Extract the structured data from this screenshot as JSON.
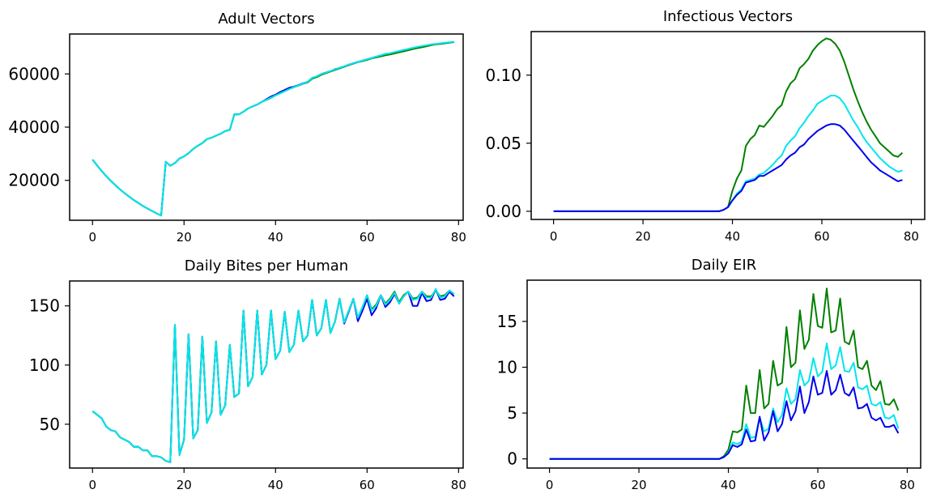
{
  "chart_data": [
    {
      "type": "line",
      "title": "Adult Vectors",
      "xlim": [
        -5,
        81
      ],
      "ylim": [
        5000,
        75000
      ],
      "xticks": [
        0,
        20,
        40,
        60,
        80
      ],
      "yticks": [
        20000,
        40000,
        60000
      ],
      "ytick_labels": [
        "20000",
        "40000",
        "60000"
      ],
      "xtick_labels": [
        "0",
        "20",
        "40",
        "60",
        "80"
      ],
      "series": [
        {
          "color": "#0000ee",
          "x_start": 0,
          "values": [
            27800,
            25600,
            23500,
            21600,
            19800,
            18200,
            16600,
            15200,
            13900,
            12600,
            11500,
            10400,
            9400,
            8500,
            7600,
            6800,
            27000,
            25500,
            26500,
            28200,
            29000,
            30200,
            31800,
            33000,
            34000,
            35500,
            36000,
            36800,
            37500,
            38500,
            39000,
            44800,
            44800,
            45800,
            47000,
            47800,
            48500,
            49500,
            50500,
            51500,
            52200,
            53200,
            54000,
            54800,
            55200,
            55800,
            56500,
            57000,
            58500,
            59000,
            60000,
            60500,
            61000,
            61800,
            62200,
            62800,
            63500,
            64000,
            64500,
            65000,
            65500,
            66000,
            66500,
            67000,
            67500,
            67700,
            68000,
            68500,
            69000,
            69200,
            69700,
            70000,
            70300,
            70600,
            71000,
            71200,
            71400,
            71600,
            71800,
            72000
          ]
        },
        {
          "color": "#008000",
          "x_start": 0,
          "values": [
            27800,
            25600,
            23500,
            21600,
            19800,
            18200,
            16600,
            15200,
            13900,
            12600,
            11500,
            10400,
            9400,
            8500,
            7600,
            6800,
            27000,
            25500,
            26500,
            28200,
            29000,
            30200,
            31800,
            33000,
            34000,
            35500,
            36000,
            36800,
            37500,
            38500,
            39000,
            44800,
            44800,
            45800,
            47000,
            47800,
            48500,
            49500,
            50200,
            51000,
            52000,
            52800,
            53500,
            54300,
            55000,
            55600,
            56300,
            56800,
            58200,
            58800,
            59700,
            60300,
            60900,
            61500,
            62100,
            62700,
            63300,
            63900,
            64400,
            64800,
            65300,
            65800,
            66200,
            66600,
            67000,
            67300,
            67700,
            68100,
            68500,
            68900,
            69300,
            69700,
            70000,
            70400,
            70800,
            71100,
            71300,
            71500,
            71700,
            72000
          ]
        },
        {
          "color": "#00e5ee",
          "x_start": 0,
          "values": [
            27800,
            25600,
            23500,
            21600,
            19800,
            18200,
            16600,
            15200,
            13900,
            12600,
            11500,
            10400,
            9400,
            8500,
            7600,
            6800,
            27000,
            25500,
            26500,
            28200,
            29000,
            30200,
            31800,
            33000,
            34000,
            35500,
            36000,
            36800,
            37500,
            38500,
            39000,
            44800,
            44800,
            45800,
            47000,
            47800,
            48500,
            49500,
            50300,
            51100,
            51900,
            52700,
            53500,
            54300,
            55000,
            55700,
            56400,
            57000,
            58500,
            59100,
            60000,
            60500,
            61100,
            61700,
            62300,
            62900,
            63500,
            64000,
            64500,
            65000,
            65500,
            66000,
            66500,
            67000,
            67500,
            67800,
            68200,
            68600,
            69000,
            69400,
            69800,
            70200,
            70500,
            70800,
            71100,
            71300,
            71500,
            71700,
            71900,
            72100
          ]
        }
      ]
    },
    {
      "type": "line",
      "title": "Infectious Vectors",
      "xlim": [
        -5,
        83
      ],
      "ylim": [
        -0.006,
        0.132
      ],
      "xticks": [
        0,
        20,
        40,
        60,
        80
      ],
      "yticks": [
        0.0,
        0.05,
        0.1
      ],
      "ytick_labels": [
        "0.00",
        "0.05",
        "0.10"
      ],
      "xtick_labels": [
        "0",
        "20",
        "40",
        "60",
        "80"
      ],
      "series": [
        {
          "color": "#008000",
          "x_start": 0,
          "values": [
            0,
            0,
            0,
            0,
            0,
            0,
            0,
            0,
            0,
            0,
            0,
            0,
            0,
            0,
            0,
            0,
            0,
            0,
            0,
            0,
            0,
            0,
            0,
            0,
            0,
            0,
            0,
            0,
            0,
            0,
            0,
            0,
            0,
            0,
            0,
            0,
            0,
            0,
            0.001,
            0.003,
            0.015,
            0.024,
            0.03,
            0.048,
            0.053,
            0.056,
            0.063,
            0.062,
            0.066,
            0.07,
            0.075,
            0.078,
            0.088,
            0.094,
            0.097,
            0.105,
            0.108,
            0.112,
            0.118,
            0.122,
            0.125,
            0.127,
            0.126,
            0.123,
            0.118,
            0.11,
            0.1,
            0.09,
            0.081,
            0.073,
            0.066,
            0.06,
            0.055,
            0.05,
            0.047,
            0.044,
            0.041,
            0.04,
            0.043
          ]
        },
        {
          "color": "#00e5ee",
          "x_start": 0,
          "values": [
            0,
            0,
            0,
            0,
            0,
            0,
            0,
            0,
            0,
            0,
            0,
            0,
            0,
            0,
            0,
            0,
            0,
            0,
            0,
            0,
            0,
            0,
            0,
            0,
            0,
            0,
            0,
            0,
            0,
            0,
            0,
            0,
            0,
            0,
            0,
            0,
            0,
            0,
            0.001,
            0.003,
            0.008,
            0.013,
            0.016,
            0.022,
            0.023,
            0.024,
            0.027,
            0.028,
            0.031,
            0.034,
            0.038,
            0.041,
            0.048,
            0.052,
            0.055,
            0.061,
            0.065,
            0.07,
            0.074,
            0.079,
            0.081,
            0.083,
            0.085,
            0.085,
            0.083,
            0.079,
            0.073,
            0.067,
            0.062,
            0.056,
            0.051,
            0.047,
            0.043,
            0.039,
            0.036,
            0.033,
            0.031,
            0.029,
            0.03
          ]
        },
        {
          "color": "#0000ee",
          "x_start": 0,
          "values": [
            0,
            0,
            0,
            0,
            0,
            0,
            0,
            0,
            0,
            0,
            0,
            0,
            0,
            0,
            0,
            0,
            0,
            0,
            0,
            0,
            0,
            0,
            0,
            0,
            0,
            0,
            0,
            0,
            0,
            0,
            0,
            0,
            0,
            0,
            0,
            0,
            0,
            0,
            0.001,
            0.003,
            0.008,
            0.012,
            0.015,
            0.021,
            0.022,
            0.023,
            0.026,
            0.026,
            0.028,
            0.03,
            0.032,
            0.034,
            0.038,
            0.041,
            0.043,
            0.047,
            0.049,
            0.053,
            0.056,
            0.059,
            0.061,
            0.063,
            0.064,
            0.064,
            0.063,
            0.06,
            0.056,
            0.052,
            0.048,
            0.044,
            0.04,
            0.036,
            0.033,
            0.03,
            0.028,
            0.026,
            0.024,
            0.022,
            0.023
          ]
        }
      ]
    },
    {
      "type": "line",
      "title": "Daily Bites per Human",
      "xlim": [
        -5,
        81
      ],
      "ylim": [
        13,
        171
      ],
      "xticks": [
        0,
        20,
        40,
        60,
        80
      ],
      "yticks": [
        50,
        100,
        150
      ],
      "ytick_labels": [
        "50",
        "100",
        "150"
      ],
      "xtick_labels": [
        "0",
        "20",
        "40",
        "60",
        "80"
      ],
      "series": [
        {
          "color": "#0000ee",
          "x_start": 0,
          "values": [
            61,
            58,
            55,
            48,
            45,
            44,
            39,
            37,
            35,
            31,
            31,
            28,
            28,
            23,
            23,
            22,
            19,
            18,
            134,
            24,
            37,
            126,
            38,
            45,
            124,
            51,
            60,
            120,
            58,
            66,
            117,
            73,
            76,
            146,
            82,
            90,
            146,
            92,
            100,
            146,
            105,
            112,
            145,
            111,
            117,
            146,
            120,
            125,
            155,
            125,
            131,
            155,
            127,
            137,
            156,
            135,
            145,
            156,
            137,
            146,
            156,
            142,
            148,
            159,
            149,
            153,
            160,
            152,
            158,
            162,
            150,
            150,
            161,
            154,
            155,
            164,
            155,
            156,
            162,
            158
          ]
        },
        {
          "color": "#008000",
          "x_start": 0,
          "values": [
            61,
            58,
            55,
            48,
            45,
            44,
            39,
            37,
            35,
            31,
            31,
            28,
            28,
            23,
            23,
            22,
            19,
            18,
            134,
            24,
            37,
            126,
            38,
            45,
            124,
            51,
            60,
            120,
            58,
            66,
            117,
            73,
            76,
            146,
            82,
            90,
            146,
            92,
            100,
            146,
            105,
            112,
            145,
            111,
            117,
            146,
            120,
            125,
            155,
            125,
            131,
            155,
            127,
            137,
            156,
            136,
            146,
            156,
            140,
            149,
            159,
            147,
            151,
            159,
            152,
            156,
            162,
            153,
            159,
            162,
            156,
            157,
            162,
            158,
            158,
            163,
            158,
            159,
            163,
            160
          ]
        },
        {
          "color": "#00e5ee",
          "x_start": 0,
          "values": [
            61,
            58,
            55,
            48,
            45,
            44,
            39,
            37,
            35,
            31,
            31,
            28,
            28,
            23,
            23,
            22,
            19,
            18,
            134,
            24,
            37,
            126,
            38,
            45,
            124,
            51,
            60,
            120,
            58,
            66,
            117,
            73,
            76,
            146,
            82,
            90,
            146,
            92,
            100,
            146,
            105,
            112,
            145,
            111,
            117,
            146,
            120,
            125,
            155,
            125,
            131,
            155,
            127,
            137,
            156,
            136,
            146,
            156,
            140,
            149,
            159,
            146,
            150,
            159,
            151,
            155,
            161,
            152,
            158,
            162,
            155,
            156,
            162,
            157,
            157,
            164,
            157,
            158,
            163,
            160
          ]
        }
      ]
    },
    {
      "type": "line",
      "title": "Daily EIR",
      "xlim": [
        -5,
        83
      ],
      "ylim": [
        -1,
        19.5
      ],
      "xticks": [
        0,
        20,
        40,
        60,
        80
      ],
      "yticks": [
        0,
        5,
        10,
        15
      ],
      "ytick_labels": [
        "0",
        "5",
        "10",
        "15"
      ],
      "xtick_labels": [
        "0",
        "20",
        "40",
        "60",
        "80"
      ],
      "series": [
        {
          "color": "#008000",
          "x_start": 0,
          "values": [
            0,
            0,
            0,
            0,
            0,
            0,
            0,
            0,
            0,
            0,
            0,
            0,
            0,
            0,
            0,
            0,
            0,
            0,
            0,
            0,
            0,
            0,
            0,
            0,
            0,
            0,
            0,
            0,
            0,
            0,
            0,
            0,
            0,
            0,
            0,
            0,
            0,
            0,
            0,
            0.3,
            1,
            3,
            2.9,
            3.2,
            8,
            5,
            5,
            9.7,
            5.5,
            6,
            10.7,
            8,
            8.3,
            14.4,
            10,
            10.5,
            16.2,
            12,
            13,
            18,
            14.5,
            14.3,
            18.6,
            13.8,
            14,
            17.5,
            12.8,
            12.5,
            14,
            10,
            9.8,
            10.7,
            8,
            7.5,
            8.5,
            6,
            5.9,
            6.5,
            5.3
          ]
        },
        {
          "color": "#00e5ee",
          "x_start": 0,
          "values": [
            0,
            0,
            0,
            0,
            0,
            0,
            0,
            0,
            0,
            0,
            0,
            0,
            0,
            0,
            0,
            0,
            0,
            0,
            0,
            0,
            0,
            0,
            0,
            0,
            0,
            0,
            0,
            0,
            0,
            0,
            0,
            0,
            0,
            0,
            0,
            0,
            0,
            0,
            0,
            0.2,
            0.7,
            1.8,
            1.6,
            1.9,
            3.8,
            2.3,
            2.4,
            4.5,
            3,
            3.3,
            5.5,
            4,
            4.8,
            7.7,
            6,
            6.5,
            9.7,
            8,
            8.5,
            11,
            9,
            9.5,
            12.6,
            9.8,
            10.2,
            12.2,
            9.6,
            9.5,
            10.5,
            7.8,
            7.6,
            8,
            6,
            5.8,
            6.2,
            4.5,
            4.4,
            4.8,
            3.3
          ]
        },
        {
          "color": "#0000ee",
          "x_start": 0,
          "values": [
            0,
            0,
            0,
            0,
            0,
            0,
            0,
            0,
            0,
            0,
            0,
            0,
            0,
            0,
            0,
            0,
            0,
            0,
            0,
            0,
            0,
            0,
            0,
            0,
            0,
            0,
            0,
            0,
            0,
            0,
            0,
            0,
            0,
            0,
            0,
            0,
            0,
            0,
            0,
            0.2,
            0.6,
            1.5,
            1.3,
            1.6,
            3.2,
            1.9,
            2,
            4.6,
            2,
            2.9,
            5.2,
            3,
            3.8,
            6.3,
            4.2,
            5.2,
            7.9,
            5,
            6.2,
            9,
            7,
            7.2,
            9.6,
            7,
            7.5,
            9.2,
            7.2,
            6.9,
            7.8,
            5.5,
            5.6,
            6,
            4.5,
            4.2,
            4.5,
            3.5,
            3.5,
            3.7,
            2.8
          ]
        }
      ]
    }
  ]
}
